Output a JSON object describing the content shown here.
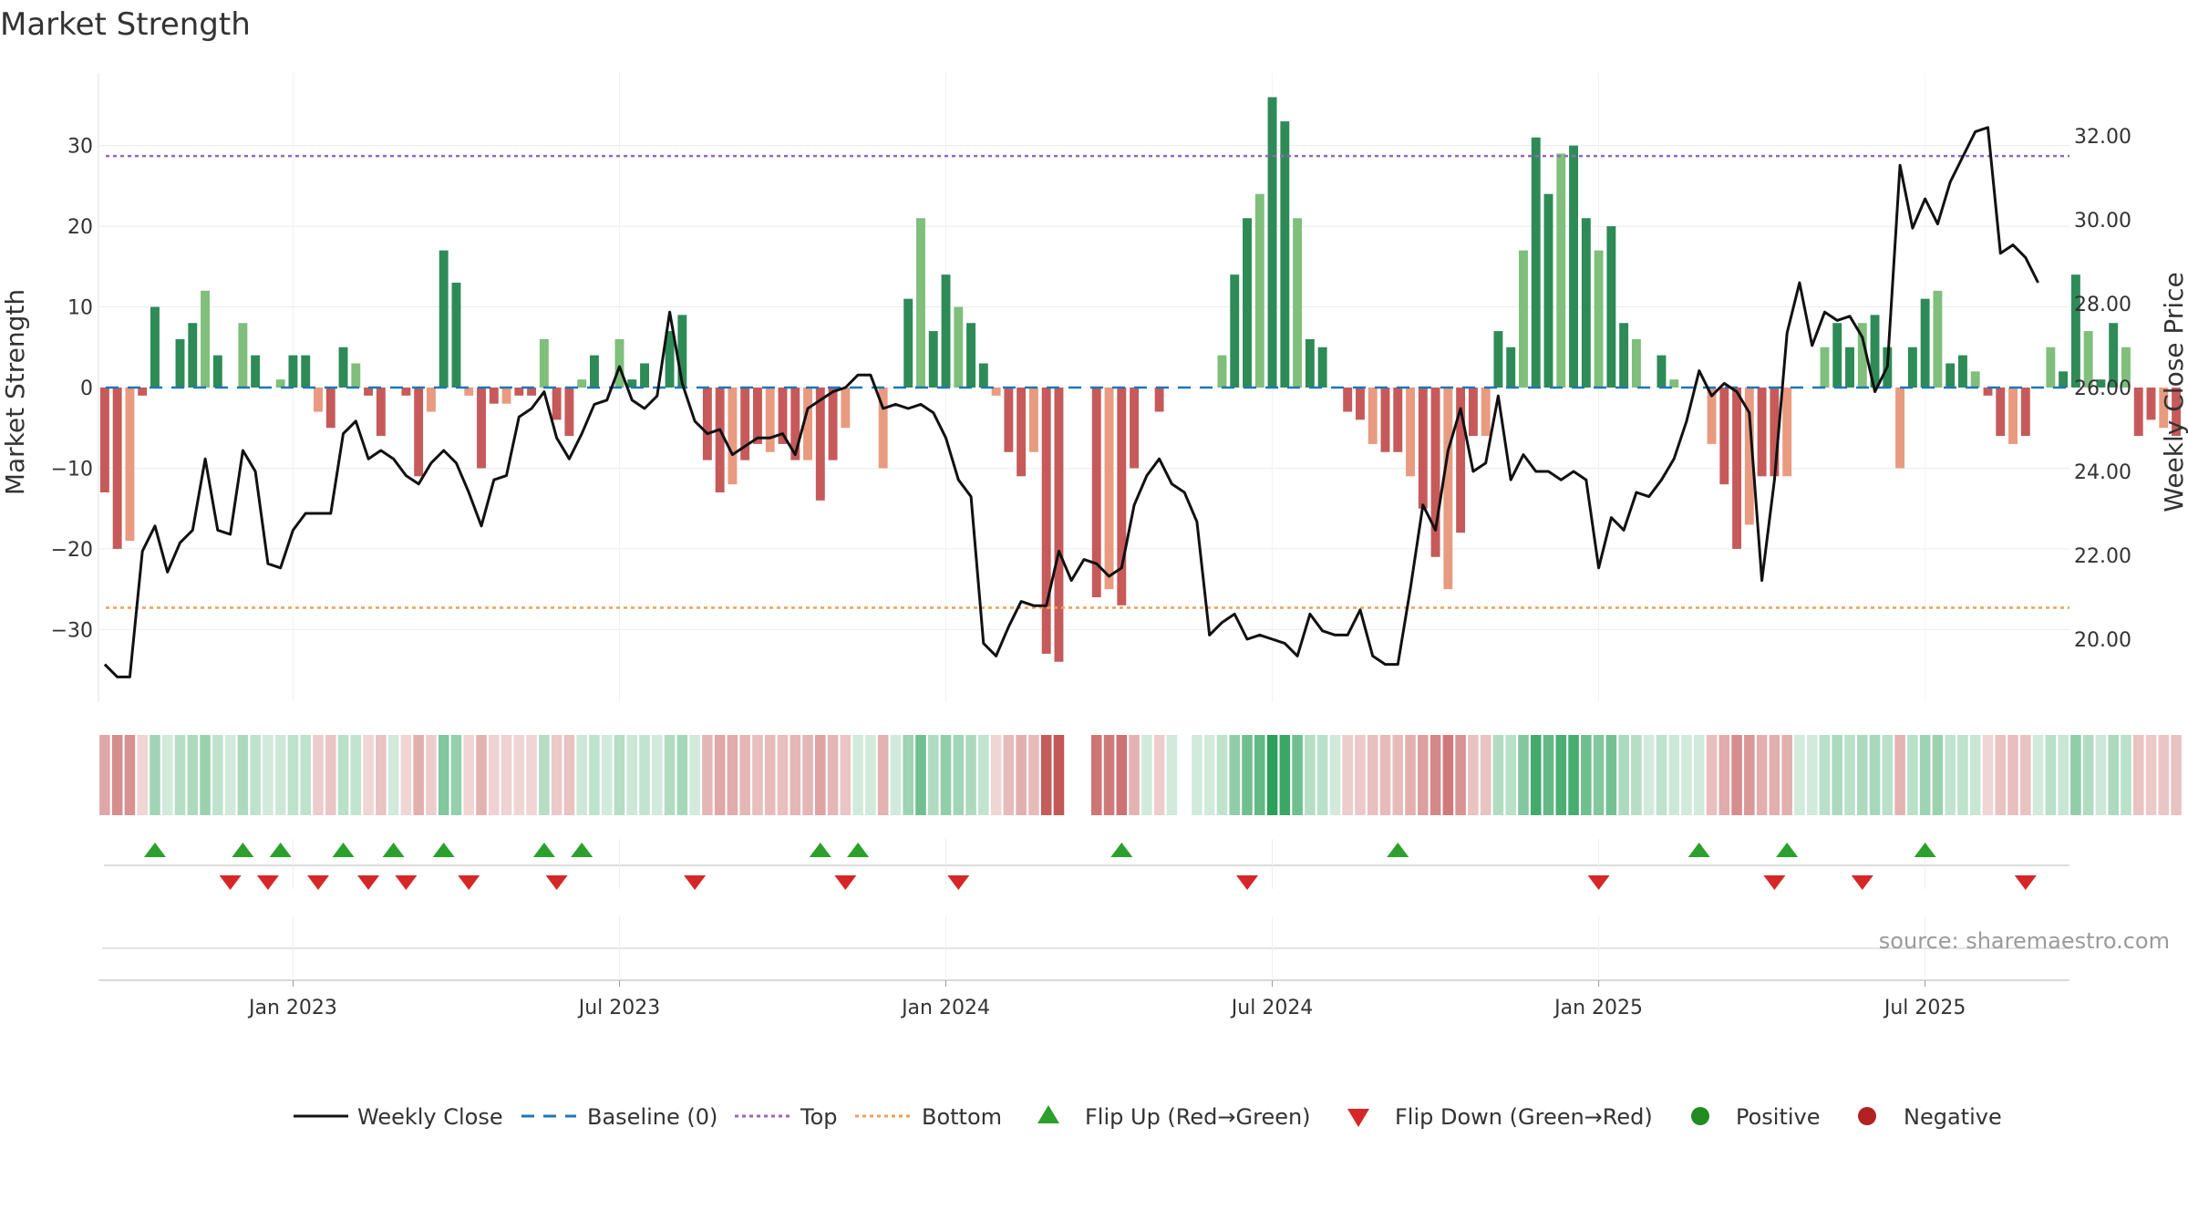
{
  "chart_data": {
    "type": "bar",
    "title": "Market Strength",
    "ylabel_left": "Market Strength",
    "ylabel_right": "Weekly Close Price",
    "ylim_left": [
      -39,
      39
    ],
    "ylim_right": [
      18.5,
      33.5
    ],
    "yticks_left": [
      30,
      20,
      10,
      0,
      -10,
      -20,
      -30
    ],
    "yticks_left_labels": [
      "30",
      "20",
      "10",
      "0",
      "−10",
      "−20",
      "−30"
    ],
    "yticks_right": [
      32,
      30,
      28,
      26,
      24,
      22,
      20
    ],
    "yticks_right_labels": [
      "32.00",
      "30.00",
      "28.00",
      "26.00",
      "24.00",
      "22.00",
      "20.00"
    ],
    "top_threshold": 28.7,
    "bottom_threshold": -27.3,
    "x_tick_labels": [
      "Jan 2023",
      "Jul 2023",
      "Jan 2024",
      "Jul 2024",
      "Jan 2025",
      "Jul 2025"
    ],
    "x_tick_weeks": [
      15,
      41,
      67,
      93,
      119,
      145
    ],
    "weeks": 157,
    "strength": [
      -13,
      -20,
      -19,
      -1,
      10,
      0,
      6,
      8,
      12,
      4,
      0,
      8,
      4,
      0,
      1,
      4,
      4,
      -3,
      -5,
      5,
      3,
      -1,
      -6,
      0,
      -1,
      -11,
      -3,
      17,
      13,
      -1,
      -10,
      -2,
      -2,
      -1,
      -1,
      6,
      -4,
      -6,
      1,
      4,
      0,
      6,
      1,
      3,
      0,
      7,
      9,
      0,
      -9,
      -13,
      -12,
      -9,
      -7,
      -8,
      -7,
      -9,
      -9,
      -14,
      -9,
      -5,
      0,
      0,
      -10,
      0,
      11,
      21,
      7,
      14,
      10,
      8,
      3,
      -1,
      -8,
      -11,
      -8,
      -33,
      -34,
      0,
      0,
      -26,
      -25,
      -27,
      -10,
      0,
      -3,
      0,
      0,
      0,
      0,
      4,
      14,
      21,
      24,
      36,
      33,
      21,
      6,
      5,
      0,
      -3,
      -4,
      -7,
      -8,
      -8,
      -11,
      -15,
      -21,
      -25,
      -18,
      -6,
      -6,
      7,
      5,
      17,
      31,
      24,
      29,
      30,
      21,
      17,
      20,
      8,
      6,
      0,
      4,
      1,
      0,
      0,
      -7,
      -12,
      -20,
      -17,
      -11,
      -11,
      -11,
      0,
      0,
      5,
      8,
      5,
      8,
      9,
      5,
      -10,
      5,
      11,
      12,
      3,
      4,
      2,
      -1,
      -6,
      -7,
      -6,
      0,
      5,
      2,
      14,
      7,
      1,
      8,
      5,
      -6,
      -4,
      -5,
      -6
    ],
    "weekly_close": [
      19.4,
      19.1,
      19.1,
      22.1,
      22.7,
      21.6,
      22.3,
      22.6,
      24.3,
      22.6,
      22.5,
      24.5,
      24.0,
      21.8,
      21.7,
      22.6,
      23.0,
      23.0,
      23.0,
      24.9,
      25.2,
      24.3,
      24.5,
      24.3,
      23.9,
      23.7,
      24.2,
      24.5,
      24.2,
      23.5,
      22.7,
      23.8,
      23.9,
      25.3,
      25.5,
      25.9,
      24.8,
      24.3,
      24.9,
      25.6,
      25.7,
      26.5,
      25.7,
      25.5,
      25.8,
      27.8,
      26.1,
      25.2,
      24.9,
      25.0,
      24.4,
      24.6,
      24.8,
      24.8,
      24.9,
      24.4,
      25.5,
      25.7,
      25.9,
      26.0,
      26.3,
      26.3,
      25.5,
      25.6,
      25.5,
      25.6,
      25.4,
      24.8,
      23.8,
      23.4,
      19.9,
      19.6,
      20.3,
      20.9,
      20.8,
      20.8,
      22.1,
      21.4,
      21.9,
      21.8,
      21.5,
      21.7,
      23.2,
      23.9,
      24.3,
      23.7,
      23.5,
      22.8,
      20.1,
      20.4,
      20.6,
      20.0,
      20.1,
      20.0,
      19.9,
      19.6,
      20.6,
      20.2,
      20.1,
      20.1,
      20.7,
      19.6,
      19.4,
      19.4,
      21.2,
      23.2,
      22.6,
      24.5,
      25.5,
      24.0,
      24.2,
      25.8,
      23.8,
      24.4,
      24.0,
      24.0,
      23.8,
      24.0,
      23.8,
      21.7,
      22.9,
      22.6,
      23.5,
      23.4,
      23.8,
      24.3,
      25.2,
      26.4,
      25.8,
      26.1,
      25.9,
      25.4,
      21.4,
      23.8,
      27.3,
      28.5,
      27.0,
      27.8,
      27.6,
      27.7,
      27.2,
      25.9,
      26.5,
      31.3,
      29.8,
      30.5,
      29.9,
      30.9,
      31.5,
      32.1,
      32.2,
      29.2,
      29.4,
      29.1,
      28.5
    ],
    "flip_up_weeks": [
      4,
      11,
      14,
      19,
      23,
      27,
      35,
      38,
      57,
      60,
      81,
      103,
      127,
      134,
      145
    ],
    "flip_down_weeks": [
      10,
      13,
      17,
      21,
      24,
      29,
      36,
      47,
      59,
      68,
      91,
      119,
      133,
      140,
      153
    ],
    "colors": {
      "strong_green": "#2e8b57",
      "light_green": "#7fbf7b",
      "strong_red": "#c65a5a",
      "light_red": "#e89b80",
      "close_line": "#111111",
      "baseline": "#1f77b4",
      "top_line": "#9467bd",
      "bottom_line": "#f0a05a",
      "flip_up": "#2ca02c",
      "flip_down": "#d62728",
      "positive": "#228b22",
      "negative": "#b22222"
    }
  },
  "legend": {
    "weekly_close": "Weekly Close",
    "baseline": "Baseline (0)",
    "top": "Top",
    "bottom": "Bottom",
    "flip_up": "Flip Up (Red→Green)",
    "flip_down": "Flip Down (Green→Red)",
    "positive": "Positive",
    "negative": "Negative"
  },
  "source": "source: sharemaestro.com"
}
